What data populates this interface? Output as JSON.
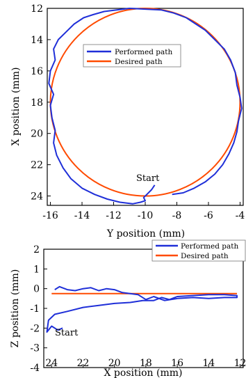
{
  "chart_data": [
    {
      "type": "line",
      "xlabel": "Y position (mm)",
      "ylabel": "X position (mm)",
      "xlim": [
        -16.2,
        -3.8
      ],
      "ylim": [
        24.6,
        12
      ],
      "x_ticks": [
        -16,
        -14,
        -12,
        -10,
        -8,
        -6,
        -4
      ],
      "x_tick_labels": [
        "-16",
        "-14",
        "-12",
        "-10",
        "-8",
        "-6",
        "-4"
      ],
      "y_ticks": [
        12,
        14,
        16,
        18,
        20,
        22,
        24
      ],
      "y_tick_labels": [
        "12",
        "14",
        "16",
        "18",
        "20",
        "22",
        "24"
      ],
      "legend": {
        "position": "upper-left",
        "entries": [
          "Performed path",
          "Desired path"
        ]
      },
      "annotations": [
        {
          "text": "Start",
          "x": -10,
          "y": 22.7
        }
      ],
      "series": [
        {
          "name": "Desired path",
          "color": "#ff4a00",
          "shape": "circle",
          "center": [
            -10,
            18
          ],
          "radius_mm": 6.0
        },
        {
          "name": "Performed path",
          "color": "#1f2fd8",
          "x": [
            -9.4,
            -9.6,
            -9.9,
            -10.1,
            -10.0,
            -10.3,
            -10.8,
            -11.6,
            -12.4,
            -13.2,
            -14.0,
            -14.7,
            -15.2,
            -15.6,
            -15.8,
            -15.7,
            -15.9,
            -16.0,
            -15.8,
            -16.1,
            -16.0,
            -15.7,
            -15.8,
            -15.5,
            -15.0,
            -14.5,
            -13.9,
            -13.3,
            -12.6,
            -11.8,
            -11.0,
            -10.0,
            -9.0,
            -8.2,
            -7.4,
            -6.8,
            -6.2,
            -5.6,
            -5.0,
            -4.6,
            -4.3,
            -4.2,
            -4.0,
            -3.9,
            -4.1,
            -4.2,
            -4.4,
            -4.7,
            -5.1,
            -5.6,
            -6.2,
            -6.9,
            -7.6,
            -8.3
          ],
          "y": [
            23.3,
            23.6,
            23.9,
            24.1,
            24.3,
            24.4,
            24.5,
            24.4,
            24.2,
            23.9,
            23.5,
            22.9,
            22.2,
            21.4,
            20.6,
            19.8,
            19.0,
            18.2,
            17.5,
            16.8,
            16.0,
            15.3,
            14.6,
            14.0,
            13.5,
            13.0,
            12.6,
            12.4,
            12.2,
            12.1,
            12.0,
            12.05,
            12.1,
            12.3,
            12.6,
            13.0,
            13.4,
            14.0,
            14.6,
            15.3,
            16.1,
            16.9,
            17.7,
            18.4,
            19.2,
            19.9,
            20.6,
            21.3,
            22.0,
            22.6,
            23.1,
            23.5,
            23.8,
            23.9
          ]
        }
      ]
    },
    {
      "type": "line",
      "xlabel": "X position (mm)",
      "ylabel": "Z position (mm)",
      "xlim": [
        24.5,
        11.8
      ],
      "ylim": [
        -4,
        2
      ],
      "x_ticks": [
        24,
        22,
        20,
        18,
        16,
        14,
        12
      ],
      "x_tick_labels": [
        "24",
        "22",
        "20",
        "18",
        "16",
        "14",
        "12"
      ],
      "y_ticks": [
        2,
        1,
        0,
        -1,
        -2,
        -3,
        -4
      ],
      "y_tick_labels": [
        "2",
        "1",
        "0",
        "-1",
        "-2",
        "-3",
        "-4"
      ],
      "legend": {
        "position": "top-right",
        "entries": [
          "Performed path",
          "Desired path"
        ]
      },
      "annotations": [
        {
          "text": "Start",
          "x": 24.0,
          "y": -2.9
        }
      ],
      "series": [
        {
          "name": "Desired path",
          "color": "#ff4a00",
          "x": [
            24.0,
            23.0,
            22.0,
            21.0,
            20.0,
            19.0,
            18.0,
            17.0,
            16.0,
            15.0,
            14.0,
            13.0,
            12.2
          ],
          "y": [
            -0.25,
            -0.25,
            -0.25,
            -0.25,
            -0.25,
            -0.25,
            -0.25,
            -0.25,
            -0.25,
            -0.25,
            -0.25,
            -0.25,
            -0.25
          ]
        },
        {
          "name": "Performed path",
          "color": "#1f2fd8",
          "x": [
            23.3,
            23.6,
            24.0,
            24.3,
            24.2,
            23.8,
            23.0,
            22.0,
            21.0,
            20.0,
            19.0,
            18.2,
            17.5,
            17.0,
            16.5,
            16.0,
            15.0,
            14.0,
            13.0,
            12.2,
            12.2,
            13.0,
            14.0,
            15.0,
            16.0,
            16.8,
            17.5,
            18.0,
            18.5,
            19.0,
            19.5,
            20.0,
            20.5,
            21.0,
            21.5,
            22.0,
            22.5,
            23.0,
            23.5,
            23.8
          ],
          "y": [
            -2.0,
            -2.1,
            -1.9,
            -2.2,
            -1.6,
            -1.3,
            -1.15,
            -0.95,
            -0.85,
            -0.75,
            -0.7,
            -0.6,
            -0.6,
            -0.45,
            -0.55,
            -0.4,
            -0.35,
            -0.3,
            -0.3,
            -0.35,
            -0.45,
            -0.45,
            -0.5,
            -0.45,
            -0.5,
            -0.6,
            -0.4,
            -0.55,
            -0.3,
            -0.25,
            -0.2,
            -0.05,
            0.0,
            -0.1,
            0.05,
            0.0,
            -0.1,
            -0.05,
            0.1,
            -0.05
          ]
        }
      ]
    }
  ]
}
